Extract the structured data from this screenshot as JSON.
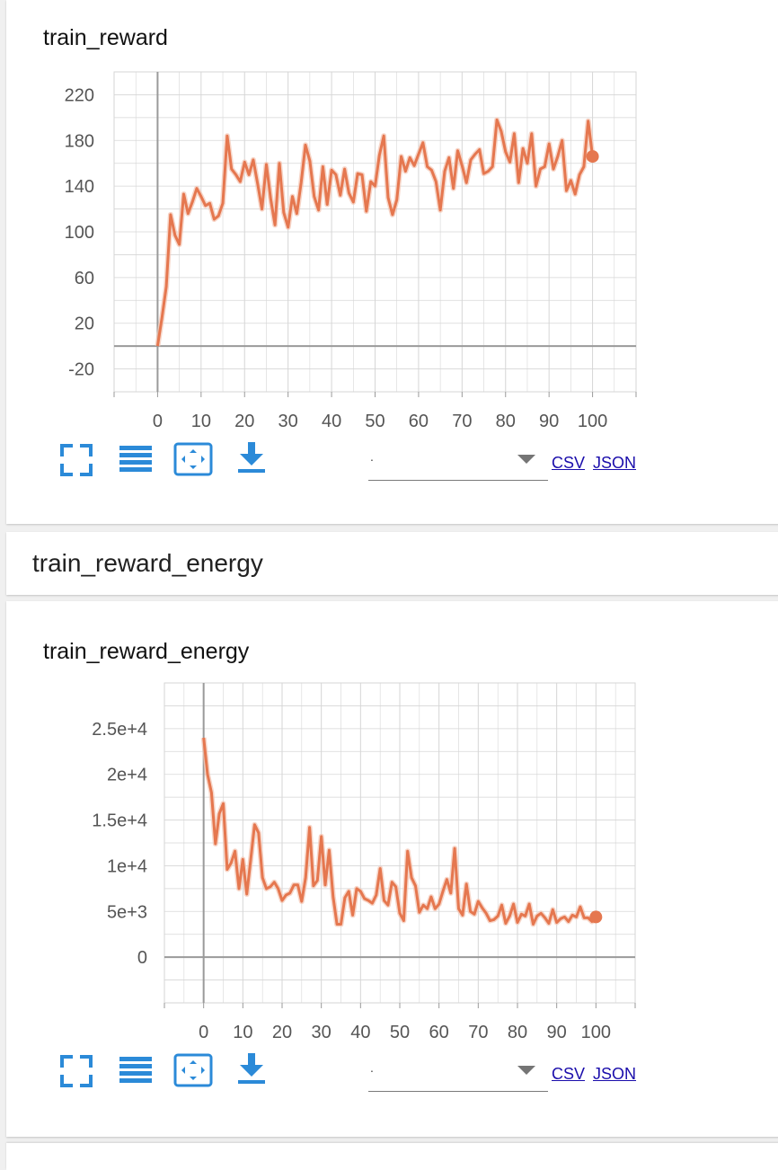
{
  "colors": {
    "line": "#e5774f",
    "line_shadow": "#f4c4b2",
    "grid": "#d6d6d6",
    "axis": "#9a9a9a",
    "icon_blue": "#2b8ad8"
  },
  "section_header": {
    "title": "train_reward_energy"
  },
  "cards": [
    {
      "title": "train_reward",
      "toolbar": {
        "icons": [
          "fullscreen-icon",
          "data-table-icon",
          "fit-domain-icon",
          "download-icon"
        ],
        "select_value": ".",
        "csv_label": "CSV",
        "json_label": "JSON"
      }
    },
    {
      "title": "train_reward_energy",
      "toolbar": {
        "icons": [
          "fullscreen-icon",
          "data-table-icon",
          "fit-domain-icon",
          "download-icon"
        ],
        "select_value": ".",
        "csv_label": "CSV",
        "json_label": "JSON"
      }
    }
  ],
  "chart_data": [
    {
      "type": "line",
      "title": "train_reward",
      "xlim": [
        -10,
        110
      ],
      "ylim": [
        -40,
        240
      ],
      "x_ticks": [
        0,
        10,
        20,
        30,
        40,
        50,
        60,
        70,
        80,
        90,
        100
      ],
      "x_tick_labels": [
        "0",
        "10",
        "20",
        "30",
        "40",
        "50",
        "60",
        "70",
        "80",
        "90",
        "100"
      ],
      "y_ticks": [
        -20,
        20,
        60,
        100,
        140,
        180,
        220
      ],
      "y_tick_labels": [
        "-20",
        "20",
        "60",
        "100",
        "140",
        "180",
        "220"
      ],
      "grid": true,
      "series": [
        {
          "x": [
            0,
            1,
            2,
            3,
            4,
            5,
            6,
            7,
            8,
            9,
            10,
            11,
            12,
            13,
            14,
            15,
            16,
            17,
            18,
            19,
            20,
            21,
            22,
            23,
            24,
            25,
            26,
            27,
            28,
            29,
            30,
            31,
            32,
            33,
            34,
            35,
            36,
            37,
            38,
            39,
            40,
            41,
            42,
            43,
            44,
            45,
            46,
            47,
            48,
            49,
            50,
            51,
            52,
            53,
            54,
            55,
            56,
            57,
            58,
            59,
            60,
            61,
            62,
            63,
            64,
            65,
            66,
            67,
            68,
            69,
            70,
            71,
            72,
            73,
            74,
            75,
            76,
            77,
            78,
            79,
            80,
            81,
            82,
            83,
            84,
            85,
            86,
            87,
            88,
            89,
            90,
            91,
            92,
            93,
            94,
            95,
            96,
            97,
            98,
            99,
            100
          ],
          "y": [
            0,
            25,
            52,
            115,
            97,
            89,
            133,
            116,
            126,
            138,
            131,
            123,
            125,
            111,
            114,
            125,
            184,
            155,
            150,
            144,
            161,
            150,
            163,
            142,
            120,
            159,
            129,
            106,
            160,
            117,
            104,
            131,
            116,
            143,
            176,
            162,
            131,
            119,
            157,
            124,
            154,
            150,
            132,
            155,
            134,
            126,
            151,
            150,
            118,
            144,
            140,
            167,
            184,
            130,
            115,
            128,
            166,
            153,
            165,
            158,
            168,
            178,
            157,
            154,
            144,
            119,
            153,
            165,
            138,
            171,
            158,
            143,
            163,
            168,
            172,
            151,
            153,
            157,
            198,
            188,
            170,
            161,
            186,
            143,
            173,
            160,
            186,
            140,
            155,
            157,
            177,
            155,
            166,
            180,
            136,
            145,
            133,
            150,
            157,
            197,
            166
          ]
        }
      ]
    },
    {
      "type": "line",
      "title": "train_reward_energy",
      "xlim": [
        -10,
        110
      ],
      "ylim": [
        -5000,
        30000
      ],
      "x_ticks": [
        0,
        10,
        20,
        30,
        40,
        50,
        60,
        70,
        80,
        90,
        100
      ],
      "x_tick_labels": [
        "0",
        "10",
        "20",
        "30",
        "40",
        "50",
        "60",
        "70",
        "80",
        "90",
        "100"
      ],
      "y_ticks": [
        0,
        5000,
        10000,
        15000,
        20000,
        25000
      ],
      "y_tick_labels": [
        "0",
        "5e+3",
        "1e+4",
        "1.5e+4",
        "2e+4",
        "2.5e+4"
      ],
      "grid": true,
      "series": [
        {
          "x": [
            0,
            1,
            2,
            3,
            4,
            5,
            6,
            7,
            8,
            9,
            10,
            11,
            12,
            13,
            14,
            15,
            16,
            17,
            18,
            19,
            20,
            21,
            22,
            23,
            24,
            25,
            26,
            27,
            28,
            29,
            30,
            31,
            32,
            33,
            34,
            35,
            36,
            37,
            38,
            39,
            40,
            41,
            42,
            43,
            44,
            45,
            46,
            47,
            48,
            49,
            50,
            51,
            52,
            53,
            54,
            55,
            56,
            57,
            58,
            59,
            60,
            61,
            62,
            63,
            64,
            65,
            66,
            67,
            68,
            69,
            70,
            71,
            72,
            73,
            74,
            75,
            76,
            77,
            78,
            79,
            80,
            81,
            82,
            83,
            84,
            85,
            86,
            87,
            88,
            89,
            90,
            91,
            92,
            93,
            94,
            95,
            96,
            97,
            98,
            99,
            100
          ],
          "y": [
            24000,
            20000,
            18000,
            12400,
            15700,
            16800,
            9600,
            10300,
            11600,
            7500,
            10700,
            6900,
            10700,
            14500,
            13600,
            8700,
            7500,
            7700,
            8200,
            7500,
            6200,
            6800,
            7000,
            7900,
            7900,
            6100,
            8700,
            14200,
            7800,
            8400,
            13200,
            7900,
            11700,
            6600,
            3600,
            3600,
            6500,
            7200,
            4600,
            7500,
            7200,
            6400,
            6200,
            5900,
            6800,
            9700,
            6200,
            5700,
            8200,
            7700,
            4800,
            4000,
            11600,
            8700,
            7800,
            4900,
            5700,
            5300,
            6600,
            5300,
            5800,
            7200,
            8500,
            7000,
            11900,
            5300,
            4600,
            8000,
            5000,
            4700,
            6100,
            5400,
            4800,
            4000,
            4100,
            4500,
            5700,
            3700,
            4500,
            5800,
            3800,
            4700,
            4500,
            5800,
            3600,
            4500,
            4800,
            4300,
            3700,
            5200,
            3800,
            4200,
            4400,
            3900,
            4600,
            4400,
            5500,
            4300,
            4300,
            3900,
            4400
          ]
        }
      ]
    }
  ]
}
